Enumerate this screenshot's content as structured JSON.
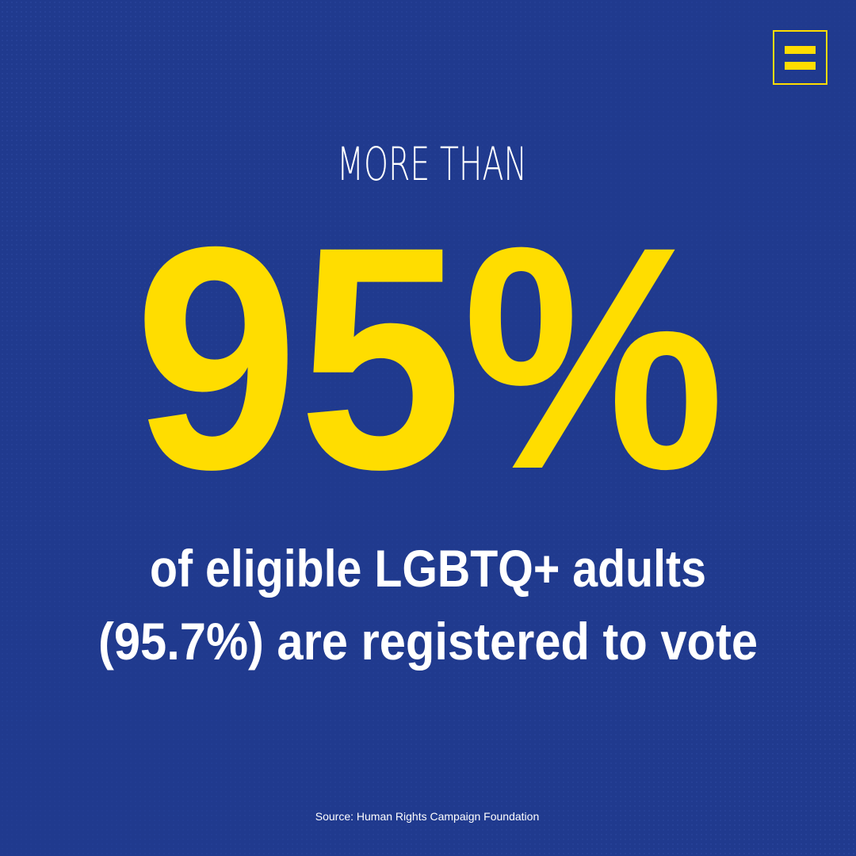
{
  "headline": {
    "lead": "MORE THAN",
    "stat": "95%"
  },
  "body": {
    "lines": [
      "of eligible LGBTQ+ adults",
      "(95.7%) are registered to vote"
    ]
  },
  "source": "Source: Human Rights Campaign Foundation"
}
